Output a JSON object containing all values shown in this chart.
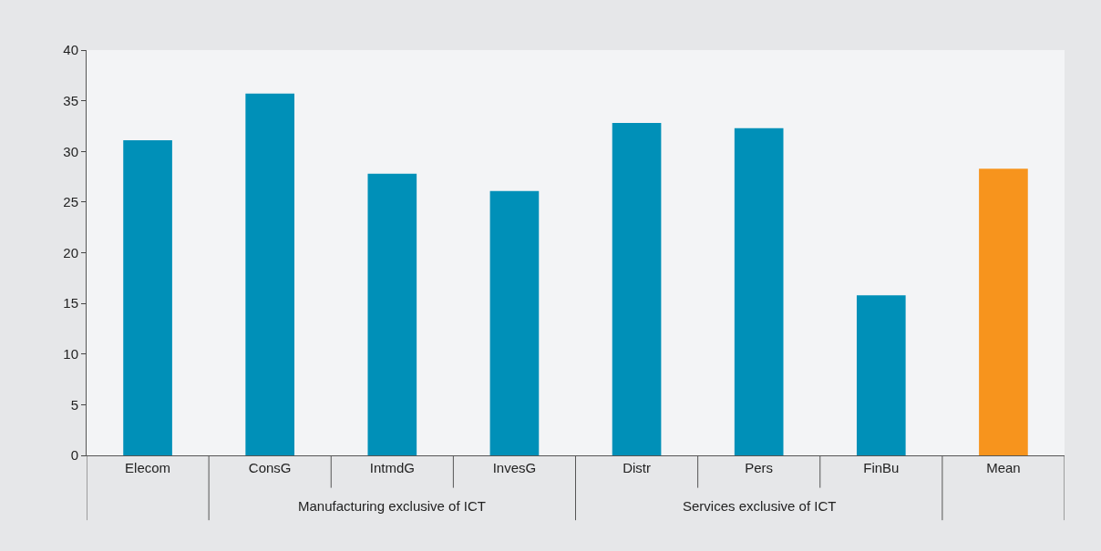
{
  "chart_data": {
    "type": "bar",
    "categories": [
      "Elecom",
      "ConsG",
      "IntmdG",
      "InvesG",
      "Distr",
      "Pers",
      "FinBu",
      "Mean"
    ],
    "values": [
      31.1,
      35.7,
      27.8,
      26.1,
      32.8,
      32.3,
      15.8,
      28.3
    ],
    "colors": [
      "#0090b8",
      "#0090b8",
      "#0090b8",
      "#0090b8",
      "#0090b8",
      "#0090b8",
      "#0090b8",
      "#f7941d"
    ],
    "ylim": [
      0,
      40
    ],
    "yticks": [
      0,
      5,
      10,
      15,
      20,
      25,
      30,
      35,
      40
    ],
    "grid": false,
    "legend": false,
    "annotations": [
      "Manufacturing exclusive of ICT",
      "Services exclusive of ICT"
    ]
  }
}
